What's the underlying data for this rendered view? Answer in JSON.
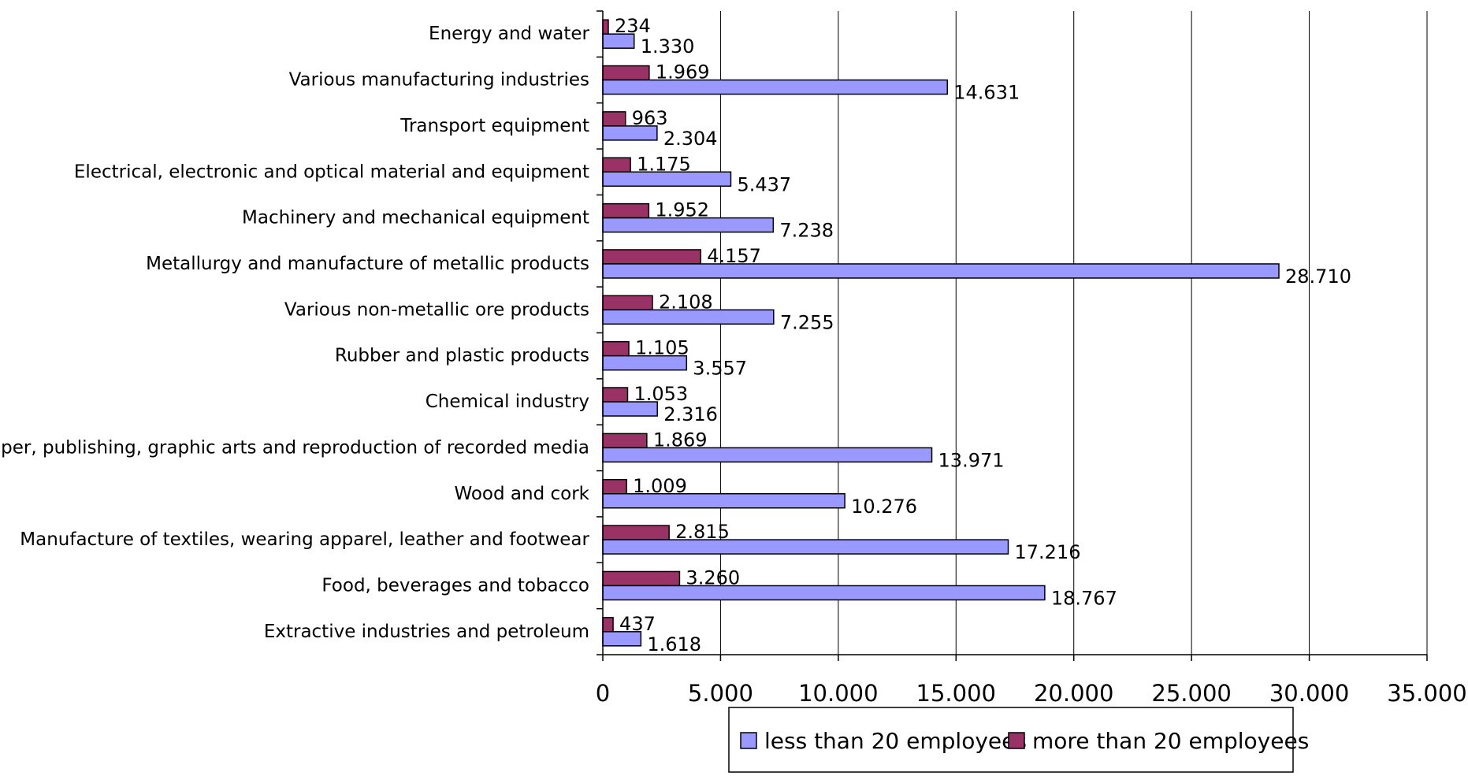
{
  "chart_data": {
    "type": "bar",
    "orientation": "horizontal",
    "categories": [
      "Energy and water",
      "Various manufacturing industries",
      "Transport equipment",
      "Electrical, electronic and optical material and equipment",
      "Machinery and mechanical equipment",
      "Metallurgy and manufacture of metallic products",
      "Various non-metallic ore products",
      "Rubber and plastic products",
      "Chemical industry",
      "Paper, publishing, graphic arts and reproduction of recorded media",
      "Wood and cork",
      "Manufacture of textiles, wearing apparel, leather and footwear",
      "Food, beverages and tobacco",
      "Extractive industries and petroleum"
    ],
    "series": [
      {
        "name": "less than 20 employees",
        "color": "#9999ff",
        "values": [
          1330,
          14631,
          2304,
          5437,
          7238,
          28710,
          7255,
          3557,
          2316,
          13971,
          10276,
          17216,
          18767,
          1618
        ],
        "labels": [
          "1.330",
          "14.631",
          "2.304",
          "5.437",
          "7.238",
          "28.710",
          "7.255",
          "3.557",
          "2.316",
          "13.971",
          "10.276",
          "17.216",
          "18.767",
          "1.618"
        ]
      },
      {
        "name": "more than 20 employees",
        "color": "#993366",
        "values": [
          234,
          1969,
          963,
          1175,
          1952,
          4157,
          2108,
          1105,
          1053,
          1869,
          1009,
          2815,
          3260,
          437
        ],
        "labels": [
          "234",
          "1.969",
          "963",
          "1.175",
          "1.952",
          "4.157",
          "2.108",
          "1.105",
          "1.053",
          "1.869",
          "1.009",
          "2.815",
          "3.260",
          "437"
        ]
      }
    ],
    "xlim": [
      0,
      35000
    ],
    "xticks": [
      0,
      5000,
      10000,
      15000,
      20000,
      25000,
      30000,
      35000
    ],
    "xtick_labels": [
      "0",
      "5.000",
      "10.000",
      "15.000",
      "20.000",
      "25.000",
      "30.000",
      "35.000"
    ],
    "grid": true,
    "legend_position": "bottom-center",
    "legend_order": [
      0,
      1
    ],
    "title": "",
    "xlabel": "",
    "ylabel": ""
  }
}
